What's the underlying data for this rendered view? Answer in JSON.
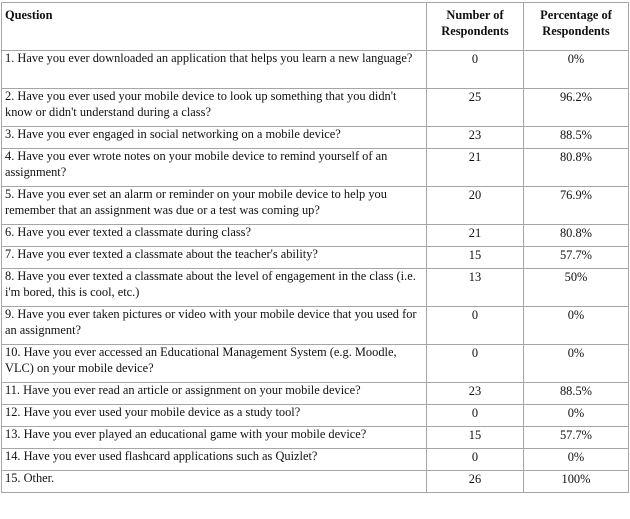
{
  "headers": {
    "question": "Question",
    "number": "Number of Respondents",
    "percentage": "Percentage of Respondents"
  },
  "rows": [
    {
      "question": "1. Have you ever downloaded an application that helps you learn a new language?",
      "number": "0",
      "percentage": "0%"
    },
    {
      "question": "2. Have you ever used your mobile device to look up something that you didn't know or didn't understand during a class?",
      "number": "25",
      "percentage": "96.2%"
    },
    {
      "question": "3. Have you ever engaged in social networking on a mobile device?",
      "number": "23",
      "percentage": "88.5%"
    },
    {
      "question": "4. Have you ever wrote notes on your mobile device to remind yourself of an assignment?",
      "number": "21",
      "percentage": "80.8%"
    },
    {
      "question": "5. Have you ever set an alarm or reminder on your mobile device to help you remember that an assignment was due or a test was coming up?",
      "number": "20",
      "percentage": "76.9%"
    },
    {
      "question": "6. Have you ever texted a classmate during class?",
      "number": "21",
      "percentage": "80.8%"
    },
    {
      "question": "7. Have you ever texted a classmate about the teacher's ability?",
      "number": "15",
      "percentage": "57.7%"
    },
    {
      "question": "8. Have you ever texted a classmate about the level of engagement in the class (i.e. i'm bored, this is cool, etc.)",
      "number": "13",
      "percentage": "50%"
    },
    {
      "question": "9. Have you ever taken pictures or video with your mobile device that you used for an assignment?",
      "number": "0",
      "percentage": "0%"
    },
    {
      "question": "10. Have you ever accessed an Educational Management System (e.g. Moodle, VLC) on your mobile device?",
      "number": "0",
      "percentage": "0%"
    },
    {
      "question": "11. Have you ever read an article or assignment on your mobile device?",
      "number": "23",
      "percentage": "88.5%"
    },
    {
      "question": "12. Have you ever used your mobile device as a study tool?",
      "number": "0",
      "percentage": "0%"
    },
    {
      "question": "13. Have you ever played an educational game with your mobile device?",
      "number": "15",
      "percentage": "57.7%"
    },
    {
      "question": "14. Have you ever used flashcard applications such as Quizlet?",
      "number": "0",
      "percentage": "0%"
    },
    {
      "question": "15. Other.",
      "number": "26",
      "percentage": "100%"
    }
  ]
}
